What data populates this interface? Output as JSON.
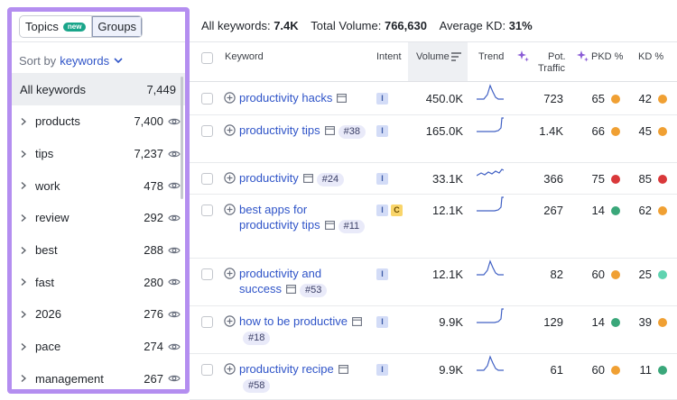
{
  "left_panel": {
    "toggle": {
      "topics_label": "Topics",
      "new_badge": "new",
      "groups_label": "Groups"
    },
    "sort": {
      "prefix": "Sort by",
      "value": "keywords"
    },
    "all_row": {
      "label": "All keywords",
      "count": "7,449"
    },
    "groups": [
      {
        "name": "products",
        "count": "7,400"
      },
      {
        "name": "tips",
        "count": "7,237"
      },
      {
        "name": "work",
        "count": "478"
      },
      {
        "name": "review",
        "count": "292"
      },
      {
        "name": "best",
        "count": "288"
      },
      {
        "name": "fast",
        "count": "280"
      },
      {
        "name": "2026",
        "count": "276"
      },
      {
        "name": "pace",
        "count": "274"
      },
      {
        "name": "management",
        "count": "267"
      }
    ]
  },
  "summary": {
    "all_keywords_label": "All keywords:",
    "all_keywords_value": "7.4K",
    "volume_label": "Total Volume:",
    "volume_value": "766,630",
    "kd_label": "Average KD:",
    "kd_value": "31%"
  },
  "table": {
    "headers": {
      "keyword": "Keyword",
      "intent": "Intent",
      "volume": "Volume",
      "trend": "Trend",
      "pot_traffic_1": "Pot.",
      "pot_traffic_2": "Traffic",
      "pkd": "PKD %",
      "kd": "KD %"
    },
    "colors": {
      "orange": "#f0a033",
      "red": "#d9383a",
      "green": "#3aa77a",
      "teal": "#5fd3b0",
      "link": "#2f54c8"
    },
    "rows": [
      {
        "keyword": "productivity hacks",
        "rank": "",
        "intents": [
          "I"
        ],
        "volume": "450.0K",
        "trend": "spike-mid",
        "pot_traffic": "723",
        "pkd": "65",
        "pkd_color": "#f0a033",
        "kd": "42",
        "kd_color": "#f0a033"
      },
      {
        "keyword": "productivity tips",
        "rank": "#38",
        "intents": [
          "I"
        ],
        "volume": "165.0K",
        "trend": "rise-end",
        "pot_traffic": "1.4K",
        "pkd": "66",
        "pkd_color": "#f0a033",
        "kd": "45",
        "kd_color": "#f0a033"
      },
      {
        "keyword": "productivity",
        "rank": "#24",
        "intents": [
          "I"
        ],
        "volume": "33.1K",
        "trend": "wavy",
        "pot_traffic": "366",
        "pkd": "75",
        "pkd_color": "#d9383a",
        "kd": "85",
        "kd_color": "#d9383a"
      },
      {
        "keyword": "best apps for productivity tips",
        "rank": "#11",
        "intents": [
          "I",
          "C"
        ],
        "volume": "12.1K",
        "trend": "rise-end",
        "pot_traffic": "267",
        "pkd": "14",
        "pkd_color": "#3aa77a",
        "kd": "62",
        "kd_color": "#f0a033"
      },
      {
        "keyword": "productivity and success",
        "rank": "#53",
        "intents": [
          "I"
        ],
        "volume": "12.1K",
        "trend": "spike-mid",
        "pot_traffic": "82",
        "pkd": "60",
        "pkd_color": "#f0a033",
        "kd": "25",
        "kd_color": "#5fd3b0"
      },
      {
        "keyword": "how to be productive",
        "rank": "#18",
        "intents": [
          "I"
        ],
        "volume": "9.9K",
        "trend": "rise-end",
        "pot_traffic": "129",
        "pkd": "14",
        "pkd_color": "#3aa77a",
        "kd": "39",
        "kd_color": "#f0a033"
      },
      {
        "keyword": "productivity recipe",
        "rank": "#58",
        "intents": [
          "I"
        ],
        "volume": "9.9K",
        "trend": "spike-mid",
        "pot_traffic": "61",
        "pkd": "60",
        "pkd_color": "#f0a033",
        "kd": "11",
        "kd_color": "#3aa77a"
      }
    ]
  }
}
